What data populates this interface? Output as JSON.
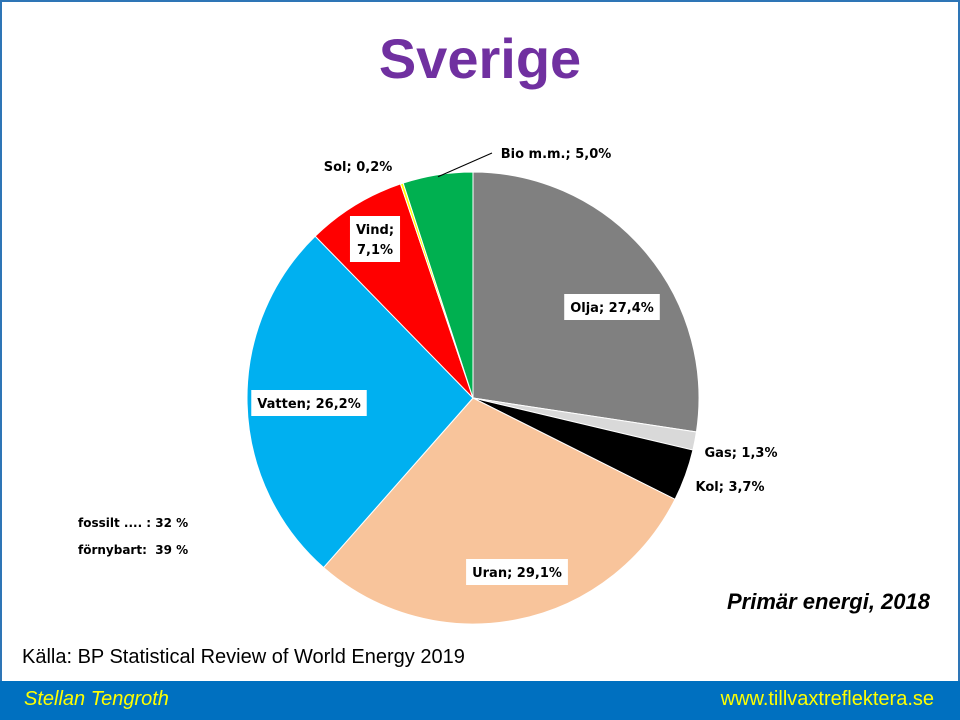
{
  "title": "Sverige",
  "chart_data": {
    "type": "pie",
    "title": "Sverige",
    "subtitle": "Primär energi, 2018",
    "slices": [
      {
        "name": "Olja",
        "value": 27.4,
        "label": "Olja; 27,4%",
        "color": "#808080"
      },
      {
        "name": "Gas",
        "value": 1.3,
        "label": "Gas; 1,3%",
        "color": "#d9d9d9"
      },
      {
        "name": "Kol",
        "value": 3.7,
        "label": "Kol; 3,7%",
        "color": "#000000"
      },
      {
        "name": "Uran",
        "value": 29.1,
        "label": "Uran; 29,1%",
        "color": "#f8c49b"
      },
      {
        "name": "Vatten",
        "value": 26.2,
        "label": "Vatten; 26,2%",
        "color": "#00b0f0"
      },
      {
        "name": "Vind",
        "value": 7.1,
        "label": "Vind;|7,1%",
        "color": "#ff0000"
      },
      {
        "name": "Sol",
        "value": 0.2,
        "label": "Sol; 0,2%",
        "color": "#ffff00"
      },
      {
        "name": "Bio m.m.",
        "value": 5.0,
        "label": "Bio m.m.; 5,0%",
        "color": "#00b050"
      }
    ]
  },
  "notes": {
    "fossil": "fossilt .... : 32 %",
    "renewable": "förnybart:  39 %"
  },
  "subtitle": "Primär energi, 2018",
  "source": "Källa: BP Statistical Review  of World Energy 2019",
  "footer": {
    "author": "Stellan Tengroth",
    "website": "www.tillvaxtreflektera.se"
  }
}
